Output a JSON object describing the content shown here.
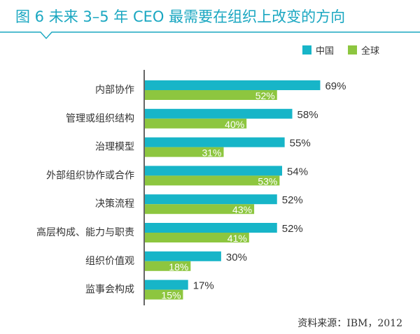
{
  "title": "图 6   未来 3–5 年 CEO 最需要在组织上改变的方向",
  "source": "资料来源：IBM，2012",
  "colors": {
    "title": "#1aa7c1",
    "china": "#17b5c8",
    "global": "#8dc63f",
    "axis": "#333333"
  },
  "chart_data": {
    "type": "bar",
    "orientation": "horizontal",
    "title": "图 6   未来 3–5 年 CEO 最需要在组织上改变的方向",
    "xlim": [
      0,
      100
    ],
    "grid": false,
    "legend_position": "top-right",
    "categories": [
      "内部协作",
      "管理或组织结构",
      "治理模型",
      "外部组织协作或合作",
      "决策流程",
      "高层构成、能力与职责",
      "组织价值观",
      "监事会构成"
    ],
    "series": [
      {
        "name": "中国",
        "values": [
          69,
          58,
          55,
          54,
          52,
          52,
          30,
          17
        ],
        "labels": [
          "69%",
          "58%",
          "55%",
          "54%",
          "52%",
          "52%",
          "30%",
          "17%"
        ]
      },
      {
        "name": "全球",
        "values": [
          52,
          40,
          31,
          53,
          43,
          41,
          18,
          15
        ],
        "labels": [
          "52%",
          "40%",
          "31%",
          "53%",
          "43%",
          "41%",
          "18%",
          "15%"
        ]
      }
    ]
  }
}
